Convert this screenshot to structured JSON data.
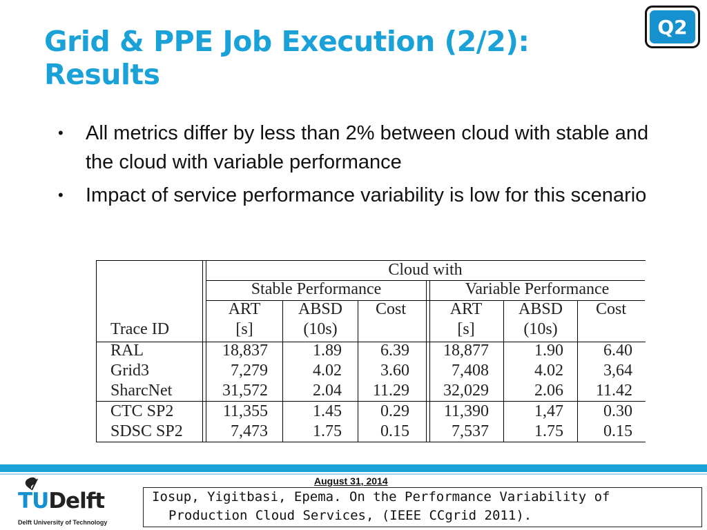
{
  "slide": {
    "title_line1": "Grid & PPE Job Execution (2/2):",
    "title_line2": "Results",
    "badge": "Q2",
    "bullets": [
      "All metrics differ by less than 2% between cloud with stable and the cloud with variable performance",
      "Impact of service performance variability is low for this scenario"
    ],
    "bullet_symbol": "•"
  },
  "table": {
    "group_header": "Cloud with",
    "subgroups": [
      "Stable Performance",
      "Variable Performance"
    ],
    "trace_header": "Trace ID",
    "column_headers": [
      {
        "line1": "ART",
        "line2": "[s]"
      },
      {
        "line1": "ABSD",
        "line2": "(10s)"
      },
      {
        "line1": "Cost",
        "line2": ""
      },
      {
        "line1": "ART",
        "line2": "[s]"
      },
      {
        "line1": "ABSD",
        "line2": "(10s)"
      },
      {
        "line1": "Cost",
        "line2": ""
      }
    ],
    "rows": [
      [
        "RAL",
        "18,837",
        "1.89",
        "6.39",
        "18,877",
        "1.90",
        "6.40"
      ],
      [
        "Grid3",
        "7,279",
        "4.02",
        "3.60",
        "7,408",
        "4.02",
        "3,64"
      ],
      [
        "SharcNet",
        "31,572",
        "2.04",
        "11.29",
        "32,029",
        "2.06",
        "11.42"
      ],
      [
        "CTC SP2",
        "11,355",
        "1.45",
        "0.29",
        "11,390",
        "1,47",
        "0.30"
      ],
      [
        "SDSC SP2",
        "7,473",
        "1.75",
        "0.15",
        "7,537",
        "1.75",
        "0.15"
      ]
    ]
  },
  "footer": {
    "date": "August 31, 2014",
    "logo_tu": "TU",
    "logo_delft": "Delft",
    "logo_sub": "Delft University of Technology",
    "citation_line1": "Iosup, Yigitbasi, Epema. On the Performance Variability of",
    "citation_line2": "Production Cloud Services, (IEEE CCgrid 2011).",
    "accent_color": "#1AA1D8"
  }
}
